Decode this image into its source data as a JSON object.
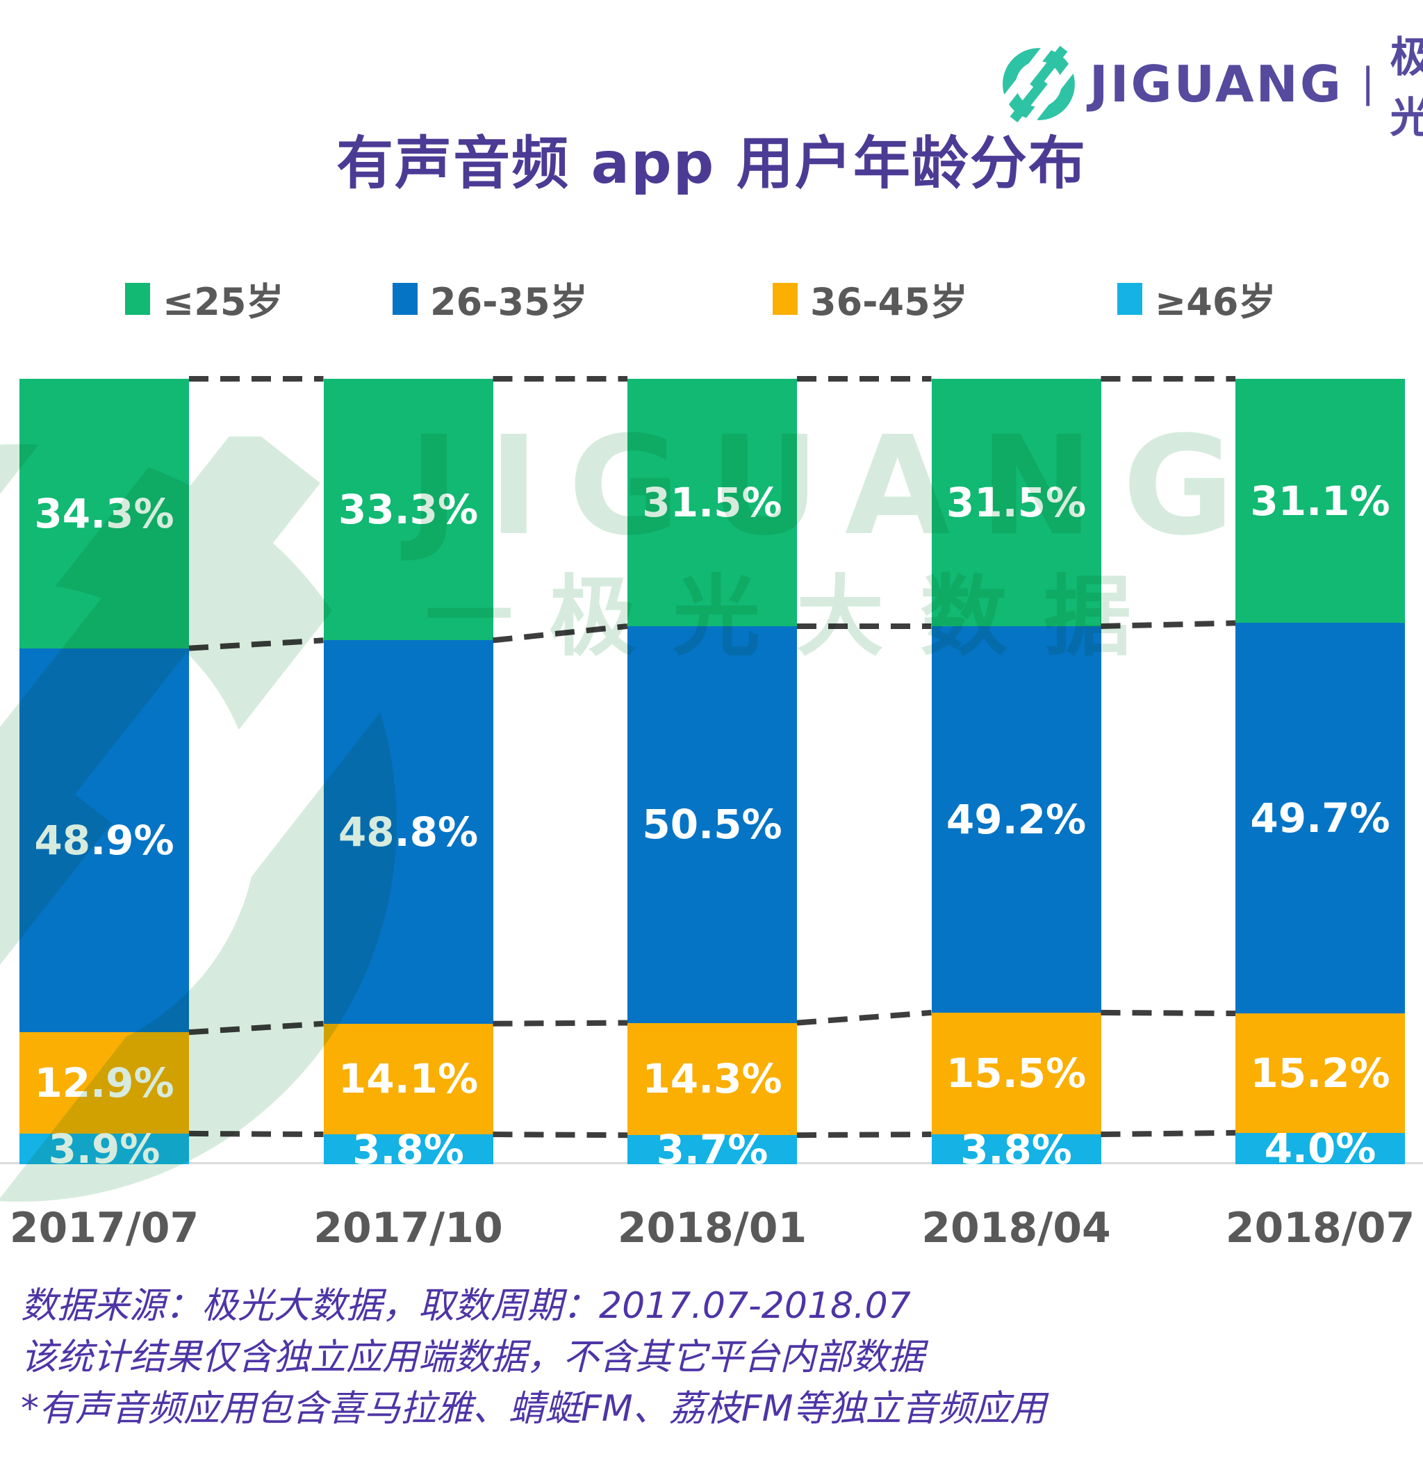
{
  "header": {
    "brand_en": "JIGUANG",
    "divider": "|",
    "brand_cn": "极光",
    "logo_teal": "#2EC3A4",
    "brand_purple": "#564A9E"
  },
  "title": "有声音频 app 用户年龄分布",
  "chart_data": {
    "type": "bar",
    "stacked": true,
    "title": "有声音频 app 用户年龄分布",
    "categories": [
      "2017/07",
      "2017/10",
      "2018/01",
      "2018/04",
      "2018/07"
    ],
    "series": [
      {
        "name": "≤25岁",
        "color": "#11B973",
        "values": [
          34.3,
          33.3,
          31.5,
          31.5,
          31.1
        ]
      },
      {
        "name": "26-35岁",
        "color": "#0574C5",
        "values": [
          48.9,
          48.8,
          50.5,
          49.2,
          49.7
        ]
      },
      {
        "name": "36-45岁",
        "color": "#FAAF02",
        "values": [
          12.9,
          14.1,
          14.3,
          15.5,
          15.2
        ]
      },
      {
        "name": "≥46岁",
        "color": "#14B2E5",
        "values": [
          3.9,
          3.8,
          3.7,
          3.8,
          4.0
        ]
      }
    ],
    "value_suffix": "%",
    "ylim": [
      0,
      100
    ],
    "legend_position": "top",
    "grid": false,
    "connector_lines": "dashed",
    "connector_color": "#3D3D3D",
    "axis_line_color": "#DBDBDB",
    "bar_label_color": "#FFFFFF",
    "category_label_color": "#595959"
  },
  "watermark": {
    "text_en": "JIGUANG",
    "text_cn": "一极光大数据",
    "color": "#D6EBDD"
  },
  "footer": {
    "lines": [
      "数据来源：极光大数据，取数周期：2017.07-2018.07",
      "该统计结果仅含独立应用端数据，不含其它平台内部数据",
      "*有声音频应用包含喜马拉雅、蜻蜓FM、荔枝FM等独立音频应用"
    ],
    "color": "#4D35A6"
  }
}
